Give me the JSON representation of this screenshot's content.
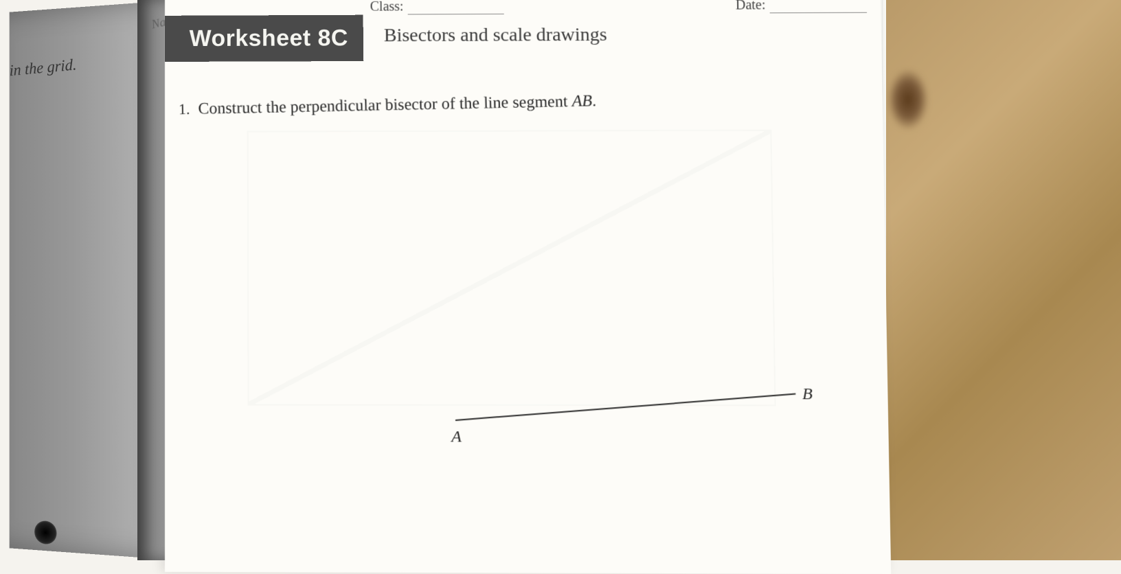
{
  "left_page": {
    "visible_text": "in the grid."
  },
  "header": {
    "name_label": "Name:",
    "class_label": "Class:",
    "date_label": "Date:"
  },
  "worksheet": {
    "tab_label": "Worksheet 8C",
    "topic": "Bisectors and scale drawings",
    "tab_bg_color": "#4a4a4a",
    "tab_text_color": "#f5f5f0"
  },
  "question": {
    "number": "1.",
    "text_prefix": "Construct the perpendicular bisector of the line segment ",
    "segment_name": "AB",
    "text_suffix": "."
  },
  "diagram": {
    "point_a_label": "A",
    "point_b_label": "B",
    "line_color": "#2a2a2a",
    "segment_angle_deg": -4.5
  },
  "colors": {
    "page_bg": "#fdfcf8",
    "text": "#2a2a2a",
    "wood": "#b89968"
  },
  "typography": {
    "title_font": "Arial",
    "title_size_pt": 26,
    "body_font": "Georgia",
    "body_size_pt": 18,
    "label_style": "italic"
  }
}
